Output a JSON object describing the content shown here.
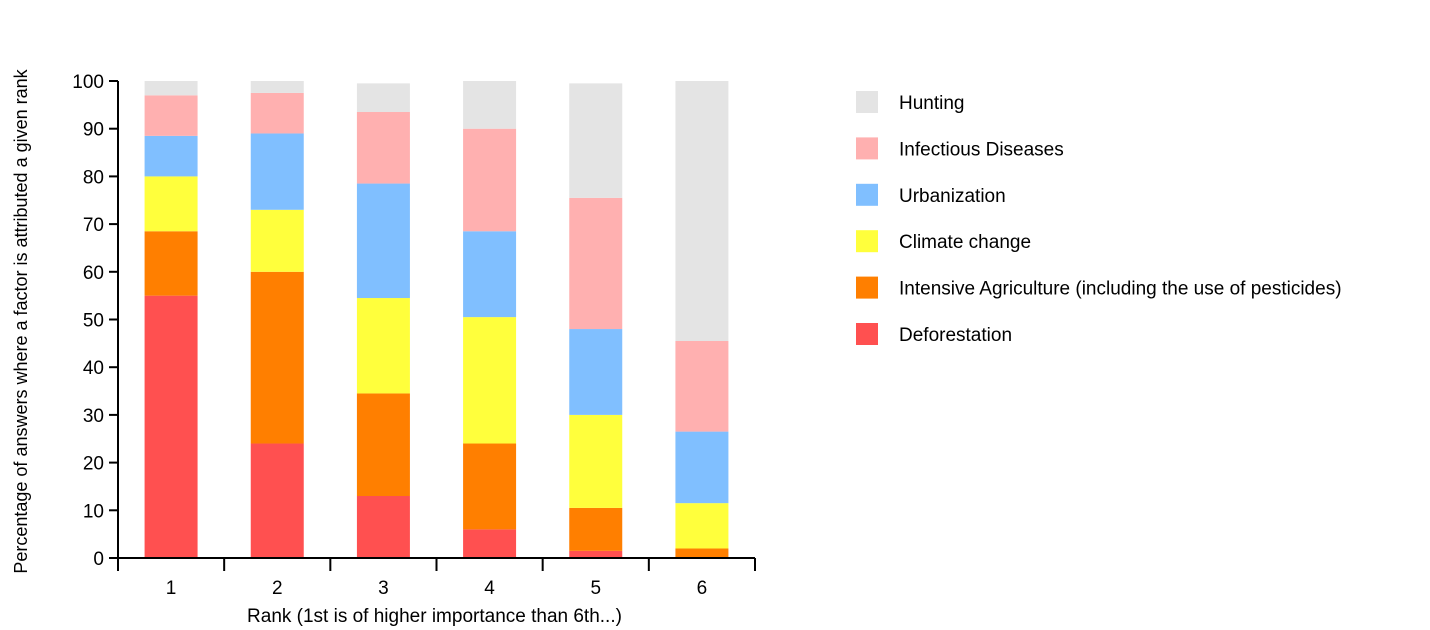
{
  "chart_data": {
    "type": "bar",
    "stacked": true,
    "title": "",
    "xlabel": "Rank (1st is of higher importance than 6th...)",
    "ylabel": "Percentage of answers where a factor is attributed a given rank",
    "ylim": [
      0,
      100
    ],
    "yticks": [
      "0",
      "10",
      "20",
      "30",
      "40",
      "50",
      "60",
      "70",
      "80",
      "90",
      "100"
    ],
    "categories": [
      "1",
      "2",
      "3",
      "4",
      "5",
      "6"
    ],
    "legend_position": "right",
    "grid": false,
    "series": [
      {
        "name": "Deforestation",
        "color": "#ff5050",
        "values": [
          55,
          24,
          13,
          6,
          1.5,
          0
        ]
      },
      {
        "name": "Intensive Agriculture (including the use of pesticides)",
        "color": "#ff7f00",
        "values": [
          13.5,
          36,
          21.5,
          18,
          9,
          2
        ]
      },
      {
        "name": "Climate change",
        "color": "#ffff3c",
        "values": [
          11.5,
          13,
          20,
          26.5,
          19.5,
          9.5
        ]
      },
      {
        "name": "Urbanization",
        "color": "#80bfff",
        "values": [
          8.5,
          16,
          24,
          18,
          18,
          15
        ]
      },
      {
        "name": "Infectious Diseases",
        "color": "#ffb0b0",
        "values": [
          8.5,
          8.5,
          15,
          21.5,
          27.5,
          19
        ]
      },
      {
        "name": "Hunting",
        "color": "#e4e4e4",
        "values": [
          3,
          2.5,
          6,
          10,
          24,
          54.5
        ]
      }
    ]
  }
}
